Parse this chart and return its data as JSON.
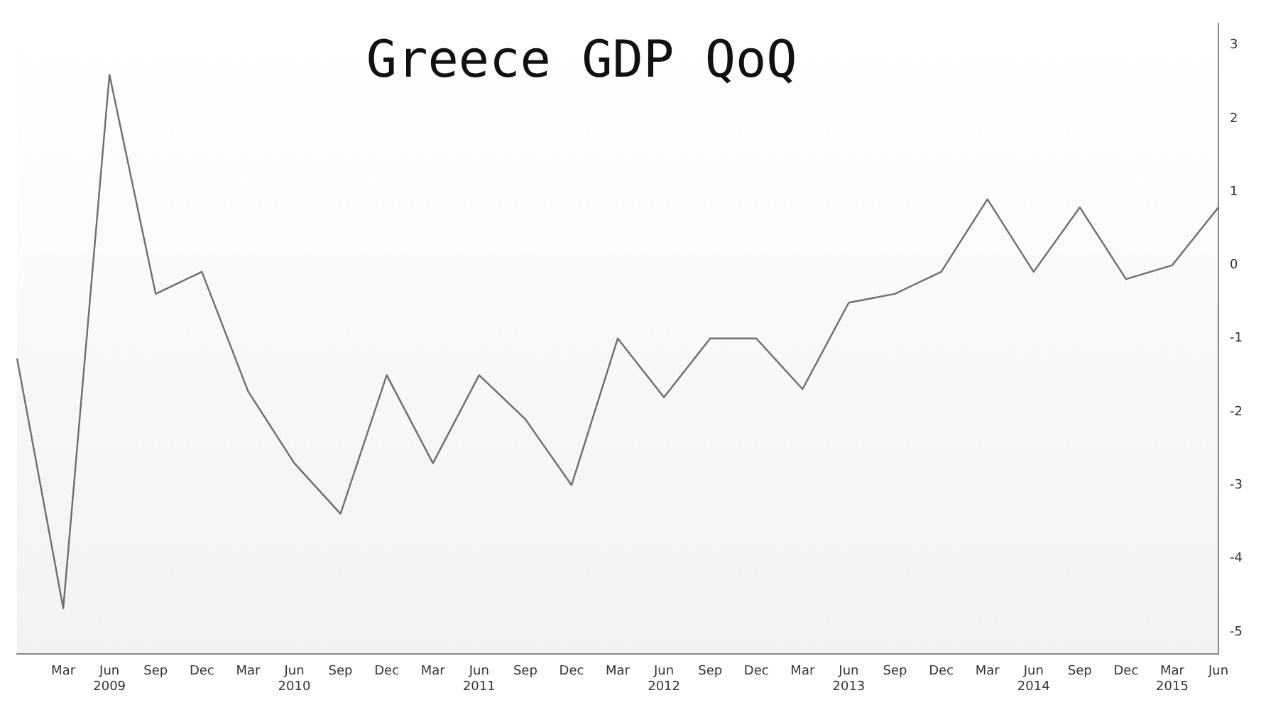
{
  "chart_data": {
    "type": "line",
    "title": "Greece GDP QoQ",
    "categories": [
      null,
      "Mar",
      "Jun 2009",
      "Sep",
      "Dec",
      "Mar",
      "Jun 2010",
      "Sep",
      "Dec",
      "Mar",
      "Jun 2011",
      "Sep",
      "Dec",
      "Mar",
      "Jun 2012",
      "Sep",
      "Dec",
      "Mar",
      "Jun 2013",
      "Sep",
      "Dec",
      "Mar",
      "Jun 2014",
      "Sep",
      "Dec",
      "Mar 2015",
      "Jun"
    ],
    "series": [
      {
        "color": "#6e6e6e",
        "values": [
          -1.27,
          -4.68,
          2.6,
          -0.39,
          -0.09,
          -1.72,
          -2.7,
          -3.39,
          -1.5,
          -2.7,
          -1.5,
          -2.1,
          -3.0,
          -1.0,
          -1.8,
          -1.0,
          -1.0,
          -1.69,
          -0.51,
          -0.39,
          -0.09,
          0.9,
          -0.09,
          0.79,
          -0.19,
          0.0,
          0.79
        ]
      }
    ],
    "ylim": [
      -5.3,
      3.3
    ],
    "yticks": [
      3,
      2,
      1,
      0,
      -1,
      -2,
      -3,
      -4,
      -5
    ],
    "grid": false,
    "legend": false,
    "marker": "none",
    "line_style": "solid"
  }
}
